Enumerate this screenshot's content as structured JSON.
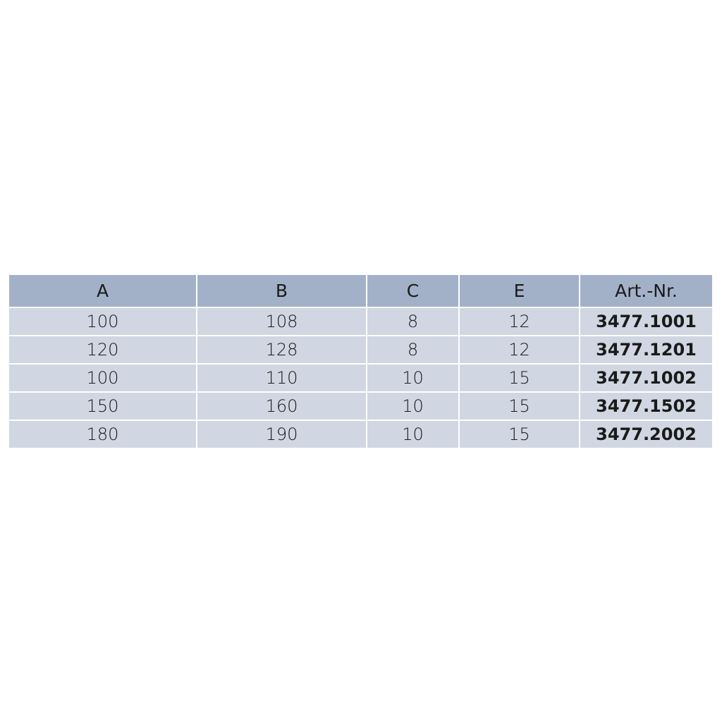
{
  "table": {
    "headers": [
      "A",
      "B",
      "C",
      "E",
      "Art.-Nr."
    ],
    "rows": [
      [
        "100",
        "108",
        "8",
        "12",
        "3477.1001"
      ],
      [
        "120",
        "128",
        "8",
        "12",
        "3477.1201"
      ],
      [
        "100",
        "110",
        "10",
        "15",
        "3477.1002"
      ],
      [
        "150",
        "160",
        "10",
        "15",
        "3477.1502"
      ],
      [
        "180",
        "190",
        "10",
        "15",
        "3477.2002"
      ]
    ]
  },
  "colors": {
    "header_bg": "#a3b1c8",
    "row_bg": "#d0d7e2"
  }
}
